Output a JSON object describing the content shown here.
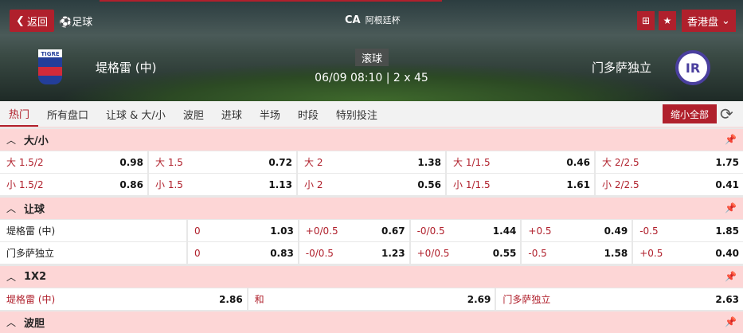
{
  "header": {
    "back": "返回",
    "sport": "足球",
    "league": "阿根廷杯",
    "league_logo": "CA",
    "odds_type": "香港盘",
    "home": "堤格雷 (中)",
    "away": "门多萨独立",
    "status": "滚球",
    "datetime": "06/09 08:10 | 2 x 45",
    "home_crest": "TIGRE",
    "away_crest": "IR",
    "accent": "#b0202c"
  },
  "tabs": [
    "热门",
    "所有盘口",
    "让球 & 大/小",
    "波胆",
    "进球",
    "半场",
    "时段",
    "特别投注"
  ],
  "collapse_all": "缩小全部",
  "ou": {
    "title": "大/小",
    "rows": [
      [
        [
          "大 1.5/2",
          "0.98"
        ],
        [
          "大 1.5",
          "0.72"
        ],
        [
          "大 2",
          "1.38"
        ],
        [
          "大 1/1.5",
          "0.46"
        ],
        [
          "大 2/2.5",
          "1.75"
        ]
      ],
      [
        [
          "小 1.5/2",
          "0.86"
        ],
        [
          "小 1.5",
          "1.13"
        ],
        [
          "小 2",
          "0.56"
        ],
        [
          "小 1/1.5",
          "1.61"
        ],
        [
          "小 2/2.5",
          "0.41"
        ]
      ]
    ]
  },
  "hdp": {
    "title": "让球",
    "rows": [
      {
        "team": "堤格雷 (中)",
        "cells": [
          [
            "0",
            "1.03"
          ],
          [
            "+0/0.5",
            "0.67"
          ],
          [
            "-0/0.5",
            "1.44"
          ],
          [
            "+0.5",
            "0.49"
          ],
          [
            "-0.5",
            "1.85"
          ]
        ]
      },
      {
        "team": "门多萨独立",
        "cells": [
          [
            "0",
            "0.83"
          ],
          [
            "-0/0.5",
            "1.23"
          ],
          [
            "+0/0.5",
            "0.55"
          ],
          [
            "-0.5",
            "1.58"
          ],
          [
            "+0.5",
            "0.40"
          ]
        ]
      }
    ]
  },
  "x12": {
    "title": "1X2",
    "cells": [
      [
        "堤格雷 (中)",
        "2.86"
      ],
      [
        "和",
        "2.69"
      ],
      [
        "门多萨独立",
        "2.63"
      ]
    ]
  },
  "cs": {
    "title": "波胆"
  }
}
